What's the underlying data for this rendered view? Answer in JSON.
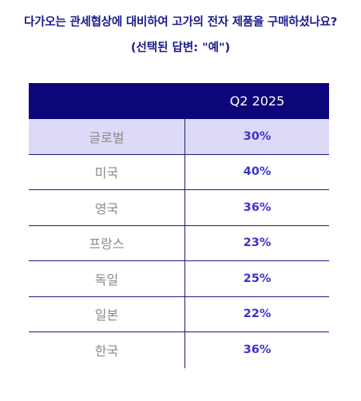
{
  "title": "다가오는 관세협상에 대비하여 고가의 전자 제품을 구매하셨나요?",
  "subtitle": "(선택된 답변: \"예\")",
  "colors": {
    "header_bg": "#0d067a",
    "highlight_row": "#dcdaf7",
    "value_text": "#3d33c8",
    "title_text": "#1c1a8a"
  },
  "chart_data": {
    "type": "table",
    "column_header": "Q2 2025",
    "rows": [
      {
        "country": "글로벌",
        "value": "30%"
      },
      {
        "country": "미국",
        "value": "40%"
      },
      {
        "country": "영국",
        "value": "36%"
      },
      {
        "country": "프랑스",
        "value": "23%"
      },
      {
        "country": "독일",
        "value": "25%"
      },
      {
        "country": "일본",
        "value": "22%"
      },
      {
        "country": "한국",
        "value": "36%"
      }
    ]
  }
}
